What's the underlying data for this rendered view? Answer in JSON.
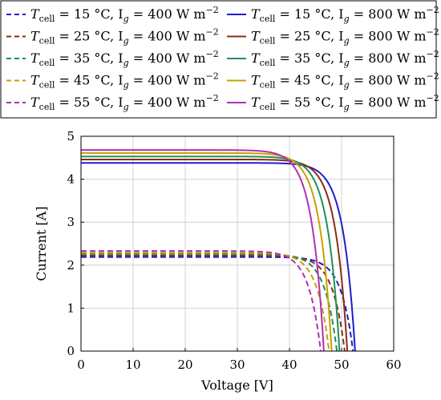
{
  "chart_data": {
    "type": "line",
    "xlabel": "Voltage [V]",
    "ylabel": "Current [A]",
    "xlim": [
      0,
      60
    ],
    "ylim": [
      0,
      5
    ],
    "xticks": [
      0,
      10,
      20,
      30,
      40,
      50,
      60
    ],
    "yticks": [
      0,
      1,
      2,
      3,
      4,
      5
    ],
    "grid": true,
    "legend_position": "top, two columns",
    "series": [
      {
        "legend": {
          "sym": "T",
          "sub": "cell",
          "eq": "= 15 °C, I",
          "gsub": "g",
          "val": "= 400 W m",
          "exp": "−2"
        },
        "color": "#1f1fcc",
        "dash": true,
        "isc": 2.19,
        "voc": 52.2
      },
      {
        "legend": {
          "sym": "T",
          "sub": "cell",
          "eq": "= 25 °C, I",
          "gsub": "g",
          "val": "= 400 W m",
          "exp": "−2"
        },
        "color": "#8b2d12",
        "dash": true,
        "isc": 2.22,
        "voc": 50.6
      },
      {
        "legend": {
          "sym": "T",
          "sub": "cell",
          "eq": "= 35 °C, I",
          "gsub": "g",
          "val": "= 400 W m",
          "exp": "−2"
        },
        "color": "#1f8f5a",
        "dash": true,
        "isc": 2.26,
        "voc": 49.1
      },
      {
        "legend": {
          "sym": "T",
          "sub": "cell",
          "eq": "= 45 °C, I",
          "gsub": "g",
          "val": "= 400 W m",
          "exp": "−2"
        },
        "color": "#c9a000",
        "dash": true,
        "isc": 2.29,
        "voc": 47.6
      },
      {
        "legend": {
          "sym": "T",
          "sub": "cell",
          "eq": "= 55 °C, I",
          "gsub": "g",
          "val": "= 400 W m",
          "exp": "−2"
        },
        "color": "#b22fb2",
        "dash": true,
        "isc": 2.33,
        "voc": 46.0
      },
      {
        "legend": {
          "sym": "T",
          "sub": "cell",
          "eq": "= 15 °C, I",
          "gsub": "g",
          "val": "= 800 W m",
          "exp": "−2"
        },
        "color": "#1f1fcc",
        "dash": false,
        "isc": 4.38,
        "voc": 52.6
      },
      {
        "legend": {
          "sym": "T",
          "sub": "cell",
          "eq": "= 25 °C, I",
          "gsub": "g",
          "val": "= 800 W m",
          "exp": "−2"
        },
        "color": "#8b2d12",
        "dash": false,
        "isc": 4.46,
        "voc": 51.1
      },
      {
        "legend": {
          "sym": "T",
          "sub": "cell",
          "eq": "= 35 °C, I",
          "gsub": "g",
          "val": "= 800 W m",
          "exp": "−2"
        },
        "color": "#1f8f5a",
        "dash": false,
        "isc": 4.53,
        "voc": 49.6
      },
      {
        "legend": {
          "sym": "T",
          "sub": "cell",
          "eq": "= 45 °C, I",
          "gsub": "g",
          "val": "= 800 W m",
          "exp": "−2"
        },
        "color": "#c9a000",
        "dash": false,
        "isc": 4.61,
        "voc": 48.1
      },
      {
        "legend": {
          "sym": "T",
          "sub": "cell",
          "eq": "= 55 °C, I",
          "gsub": "g",
          "val": "= 800 W m",
          "exp": "−2"
        },
        "color": "#b22fb2",
        "dash": false,
        "isc": 4.68,
        "voc": 46.6
      }
    ]
  }
}
